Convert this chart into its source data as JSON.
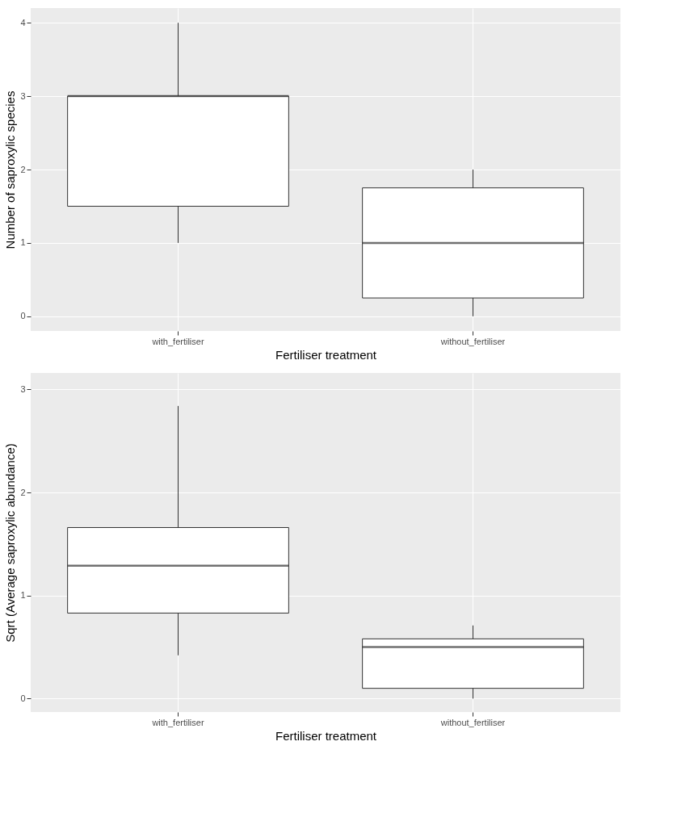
{
  "chart_data": [
    {
      "type": "box",
      "xlabel": "Fertiliser treatment",
      "ylabel": "Number of saproxylic species",
      "categories": [
        "with_fertiliser",
        "without_fertiliser"
      ],
      "boxes": [
        {
          "low": 1,
          "q1": 1.5,
          "median": 3,
          "q3": 3,
          "high": 4
        },
        {
          "low": 0,
          "q1": 0.25,
          "median": 1,
          "q3": 1.75,
          "high": 2
        }
      ],
      "ylim": [
        -0.2,
        4.2
      ],
      "yticks": [
        0,
        1,
        2,
        3,
        4
      ],
      "grid": true
    },
    {
      "type": "box",
      "xlabel": "Fertiliser treatment",
      "ylabel": "Sqrt (Average saproxylic abundance)",
      "categories": [
        "with_fertiliser",
        "without_fertiliser"
      ],
      "boxes": [
        {
          "low": 0.42,
          "q1": 0.83,
          "median": 1.29,
          "q3": 1.66,
          "high": 2.84
        },
        {
          "low": 0,
          "q1": 0.1,
          "median": 0.5,
          "q3": 0.58,
          "high": 0.71
        }
      ],
      "ylim": [
        -0.13,
        3.16
      ],
      "yticks": [
        0,
        1,
        2,
        3
      ],
      "grid": true
    }
  ]
}
